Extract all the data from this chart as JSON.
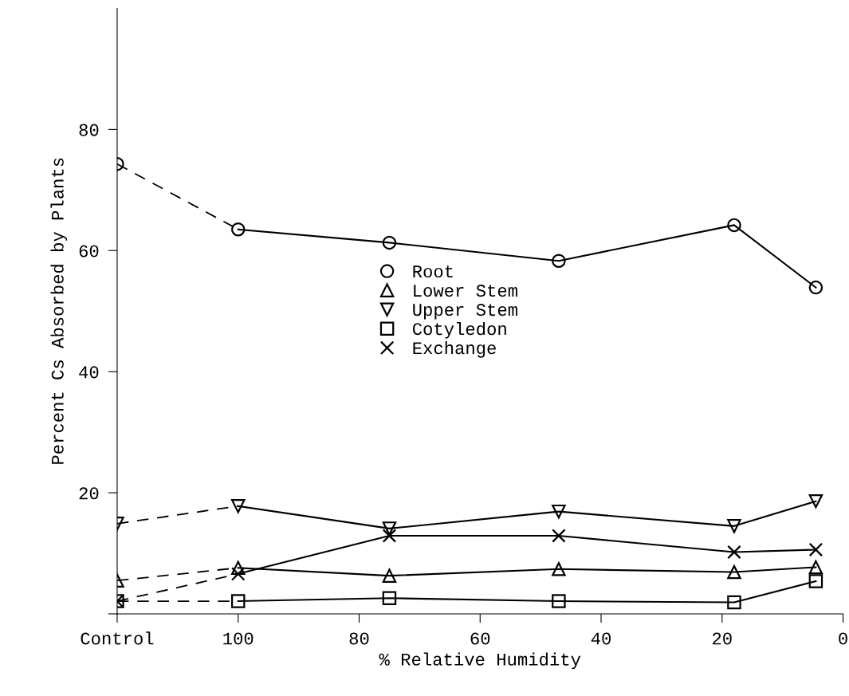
{
  "chart_data": {
    "type": "line",
    "xlabel": "% Relative Humidity",
    "ylabel": "Percent Cs Absorbed by Plants",
    "x": [
      120,
      100,
      75,
      47,
      18,
      4.5
    ],
    "xlim": [
      120,
      0
    ],
    "xticks": [
      {
        "value": 120,
        "label": "Control"
      },
      100,
      80,
      60,
      40,
      20,
      0
    ],
    "ylim": [
      0,
      100
    ],
    "yticks": [
      {
        "value": 0,
        "label": null
      },
      20,
      40,
      60,
      80
    ],
    "grid": false,
    "legend": "center",
    "line_style": "solid",
    "series": [
      {
        "name": "Root",
        "color": "#000000",
        "marker": "circle",
        "values": [
          74.3,
          63.5,
          61.3,
          58.3,
          64.2,
          53.9
        ]
      },
      {
        "name": "Lower Stem",
        "color": "#000000",
        "marker": "triangle",
        "values": [
          5.5,
          7.6,
          6.3,
          7.4,
          6.9,
          7.7
        ]
      },
      {
        "name": "Upper Stem",
        "color": "#000000",
        "marker": "triangle_down",
        "values": [
          14.9,
          17.8,
          14.1,
          16.9,
          14.5,
          18.6
        ]
      },
      {
        "name": "Cotyledon",
        "color": "#000000",
        "marker": "square",
        "values": [
          2.1,
          2.1,
          2.6,
          2.1,
          1.9,
          5.4
        ]
      },
      {
        "name": "Exchange",
        "color": "#000000",
        "marker": "cross",
        "values": [
          2.1,
          6.6,
          12.9,
          12.9,
          10.2,
          10.6
        ]
      }
    ]
  }
}
